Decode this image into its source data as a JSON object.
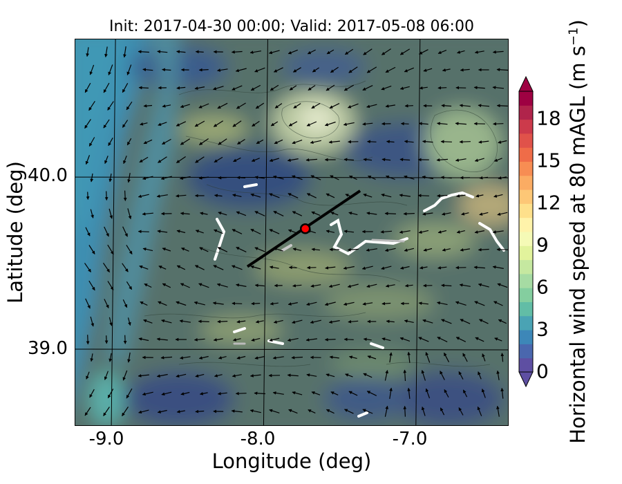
{
  "title": "Init: 2017-04-30 00:00; Valid: 2017-05-08 06:00",
  "xlabel": "Longitude (deg)",
  "ylabel": "Latitude (deg)",
  "x_ticks": [
    "-9.0",
    "-8.0",
    "-7.0"
  ],
  "y_ticks": [
    "40.0",
    "39.0"
  ],
  "colorbar": {
    "label_main": "Horizontal wind speed at 80 mAGL (m s",
    "label_exp": "−1",
    "label_close": ")",
    "ticks": [
      "0",
      "3",
      "6",
      "9",
      "12",
      "15",
      "18"
    ],
    "range": [
      0,
      20
    ],
    "extend": "both",
    "colors": [
      "#5e4fa2",
      "#4a67ae",
      "#3d87b8",
      "#4aa3b4",
      "#62bda6",
      "#84ce9f",
      "#a6dba3",
      "#c5e8a0",
      "#e2f39c",
      "#f5fab6",
      "#fff3aa",
      "#fee08b",
      "#fdc776",
      "#fbac63",
      "#f78d53",
      "#ef6c48",
      "#e0524a",
      "#cc3a4b",
      "#b0244b",
      "#9e0142"
    ]
  },
  "map": {
    "lon_range": [
      -9.25,
      -6.4
    ],
    "lat_range": [
      38.55,
      40.8
    ],
    "grid_lons": [
      -9.0,
      -8.0,
      -7.0
    ],
    "grid_lats": [
      40.0,
      39.0
    ],
    "transect": {
      "start": [
        -8.12,
        39.48
      ],
      "end": [
        -7.38,
        39.92
      ]
    },
    "site_marker": {
      "lon": -7.74,
      "lat": 39.7,
      "color": "#ff0000"
    }
  }
}
